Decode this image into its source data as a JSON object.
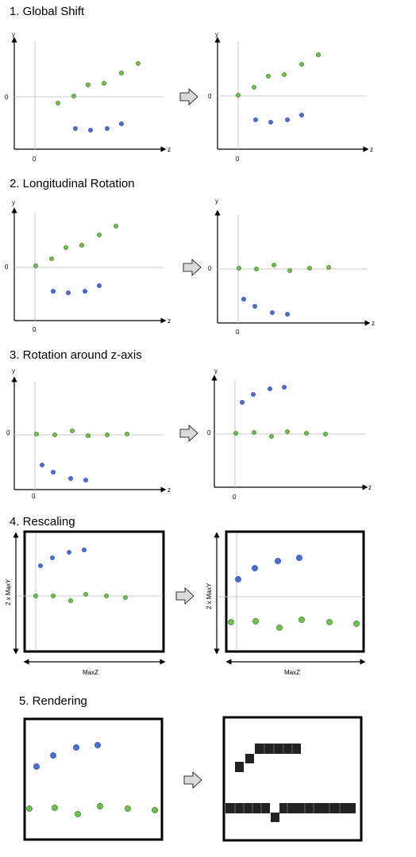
{
  "colors": {
    "blue_point": "#4a6fd0",
    "blue_stroke": "#22399a",
    "green_point": "#6ec14d",
    "green_stroke": "#2f6b1f",
    "zero_line": "#c8c8c8",
    "arrow_fill": "#d9d9d9",
    "axis": "#000000"
  },
  "axis_labels": {
    "y": "y",
    "z": "z",
    "zero": "0"
  },
  "sections": [
    {
      "title": "1. Global Shift"
    },
    {
      "title": "2. Longitudinal Rotation"
    },
    {
      "title": "3. Rotation around z-axis"
    },
    {
      "title": "4. Rescaling",
      "dim_y": "2 x MaxY",
      "dim_z": "MaxZ"
    },
    {
      "title": "5. Rendering"
    }
  ]
}
